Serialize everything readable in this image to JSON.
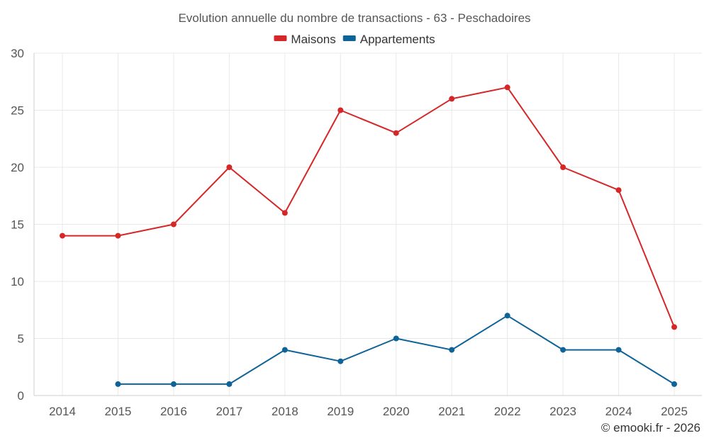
{
  "chart_data": {
    "type": "line",
    "title": "Evolution annuelle du nombre de transactions - 63 - Peschadoires",
    "categories": [
      "2014",
      "2015",
      "2016",
      "2017",
      "2018",
      "2019",
      "2020",
      "2021",
      "2022",
      "2023",
      "2024",
      "2025"
    ],
    "series": [
      {
        "name": "Maisons",
        "color": "#d62728",
        "values": [
          14,
          14,
          15,
          20,
          16,
          25,
          23,
          26,
          27,
          20,
          18,
          6
        ]
      },
      {
        "name": "Appartements",
        "color": "#0e6399",
        "values": [
          null,
          1,
          1,
          1,
          4,
          3,
          5,
          4,
          7,
          4,
          4,
          1
        ]
      }
    ],
    "yticks": [
      "0",
      "5",
      "10",
      "15",
      "20",
      "25",
      "30"
    ],
    "ylim": [
      0,
      30
    ],
    "legend_position": "top-center",
    "grid": true,
    "credit": "© emooki.fr - 2026"
  }
}
